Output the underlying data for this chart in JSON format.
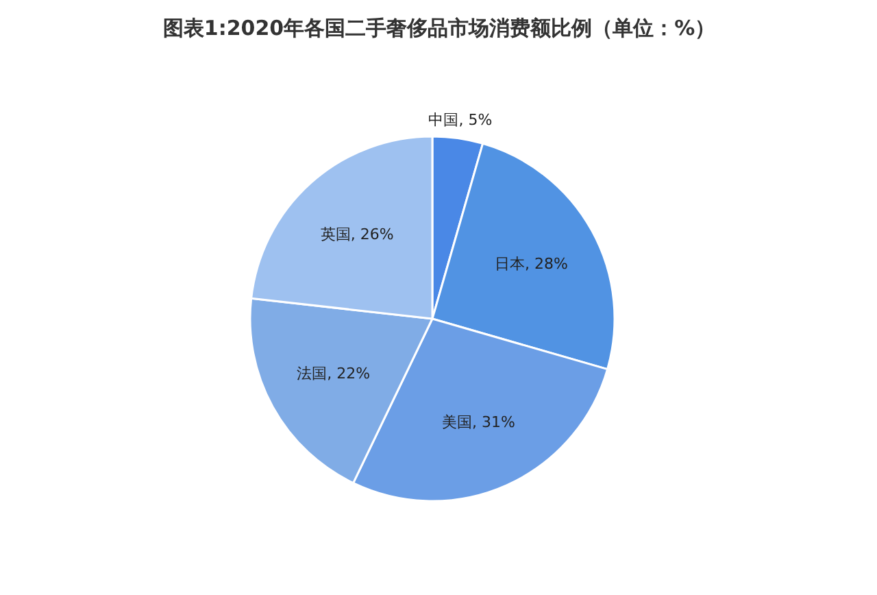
{
  "chart_data": {
    "type": "pie",
    "title": "图表1:2020年各国二手奢侈品市场消费额比例（单位：%）",
    "categories": [
      "中国",
      "日本",
      "美国",
      "法国",
      "英国"
    ],
    "values": [
      5,
      28,
      31,
      22,
      26
    ],
    "colors": [
      "#4a88e6",
      "#5193e3",
      "#6b9ee6",
      "#80ace6",
      "#9ec1f0"
    ],
    "value_labels": [
      "5%",
      "28%",
      "31%",
      "22%",
      "26%"
    ]
  }
}
